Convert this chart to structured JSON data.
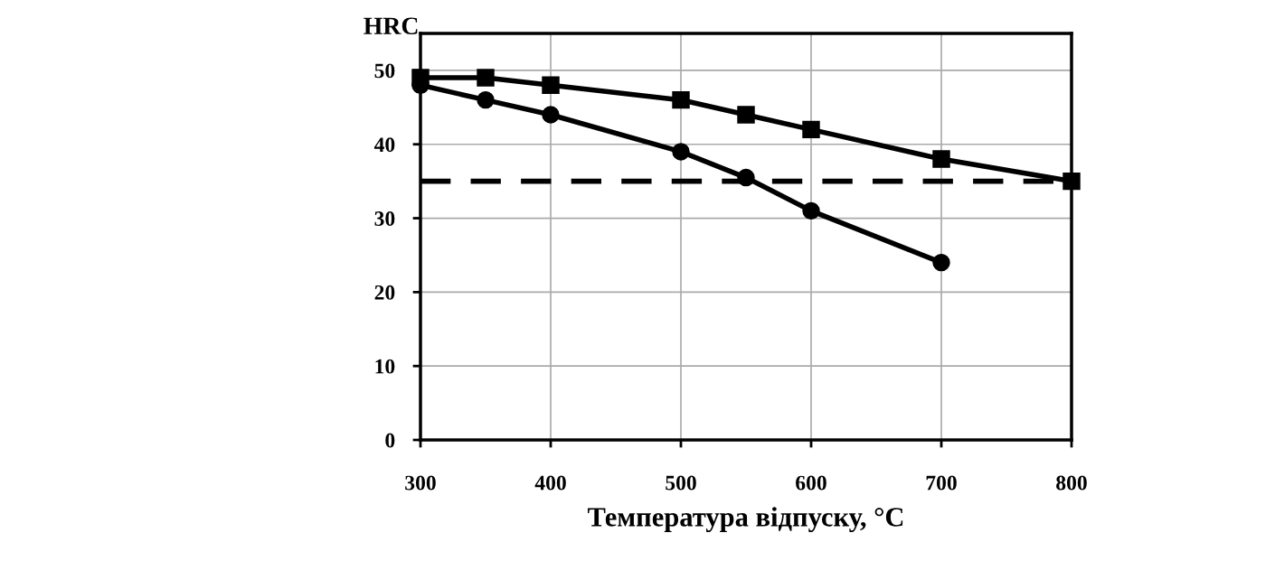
{
  "chart_data": {
    "type": "line",
    "ylabel": "HRC",
    "xlabel": "Температура відпуску, °C",
    "xlim": [
      300,
      800
    ],
    "xticks": [
      300,
      400,
      500,
      600,
      700,
      800
    ],
    "ylim": [
      0,
      55
    ],
    "yticks": [
      0,
      10,
      20,
      30,
      40,
      50
    ],
    "grid": true,
    "line_style": "solid",
    "series": [
      {
        "color": "#000000",
        "marker": "square",
        "x": [
          300,
          350,
          400,
          500,
          550,
          600,
          700,
          800
        ],
        "values": [
          49,
          49,
          48,
          46,
          44,
          42,
          38,
          35
        ]
      },
      {
        "color": "#000000",
        "marker": "circle",
        "x": [
          300,
          350,
          400,
          500,
          550,
          600,
          700
        ],
        "values": [
          48,
          46,
          44,
          39,
          35.5,
          31,
          24
        ]
      }
    ],
    "ref_lines": [
      {
        "axis": "y",
        "value": 35,
        "label": null,
        "color": "#000000",
        "line_style": "dashed"
      }
    ]
  }
}
